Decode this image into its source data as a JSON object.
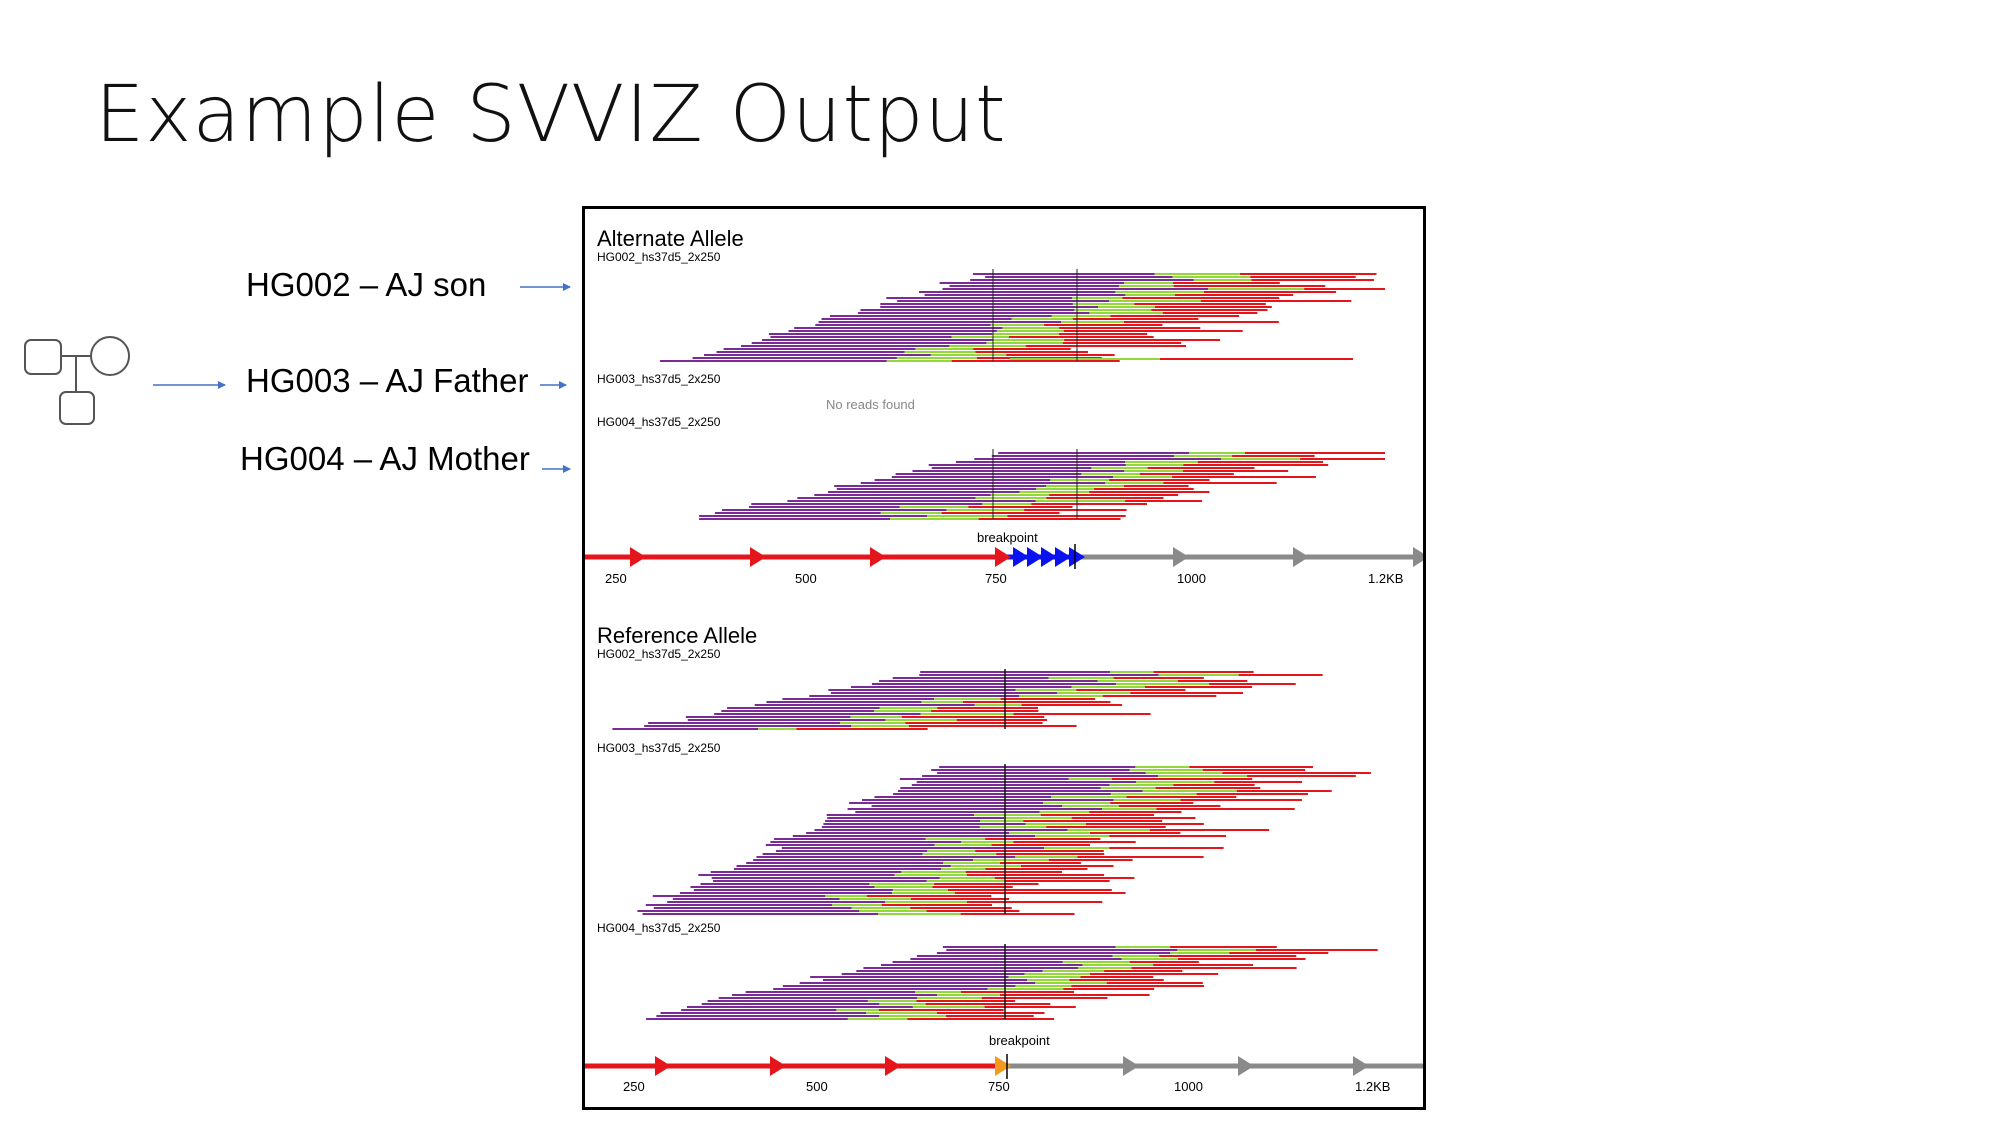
{
  "slide": {
    "title": "Example SVVIZ Output"
  },
  "labels": [
    {
      "id": "hg002",
      "text": "HG002 – AJ son"
    },
    {
      "id": "hg003",
      "text": "HG003 – AJ Father"
    },
    {
      "id": "hg004",
      "text": "HG004 – AJ Mother"
    }
  ],
  "colors": {
    "purple": "#7a2b96",
    "green": "#93d73c",
    "red": "#e4151b",
    "blue": "#0a12f0",
    "gray": "#8a8a8a",
    "orange": "#f19a1c",
    "arrow": "#4472c4"
  },
  "panels": {
    "alternate": {
      "title": "Alternate Allele",
      "samples": [
        {
          "label": "HG002_hs37d5_2x250",
          "reads": true
        },
        {
          "label": "HG003_hs37d5_2x250",
          "reads": false,
          "empty_message": "No reads found"
        },
        {
          "label": "HG004_hs37d5_2x250",
          "reads": true
        }
      ],
      "breakpoint_label": "breakpoint",
      "ticks": [
        "250",
        "500",
        "750",
        "1000",
        "1.2KB"
      ]
    },
    "reference": {
      "title": "Reference Allele",
      "samples": [
        {
          "label": "HG002_hs37d5_2x250",
          "reads": true
        },
        {
          "label": "HG003_hs37d5_2x250",
          "reads": true
        },
        {
          "label": "HG004_hs37d5_2x250",
          "reads": true
        }
      ],
      "breakpoint_label": "breakpoint",
      "ticks": [
        "250",
        "500",
        "750",
        "1000",
        "1.2KB"
      ]
    }
  }
}
